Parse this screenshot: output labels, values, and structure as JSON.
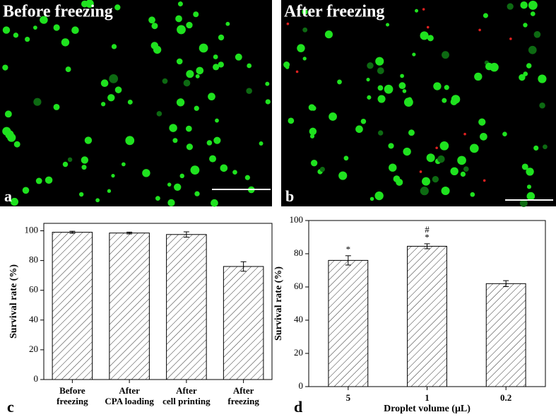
{
  "images": [
    {
      "title": "Before freezing",
      "label": "a"
    },
    {
      "title": "After freezing",
      "label": "b"
    }
  ],
  "chart_data": [
    {
      "type": "bar",
      "panel_label": "c",
      "ylabel": "Survival rate (%)",
      "categories": [
        "Before\nfreezing",
        "After\nCPA loading",
        "After\ncell printing",
        "After\nfreezing"
      ],
      "values": [
        99,
        98.5,
        97.5,
        76
      ],
      "errors": [
        0.7,
        0.6,
        1.8,
        3.2
      ],
      "ylim": [
        0,
        105
      ],
      "yticks": [
        0,
        20,
        40,
        60,
        80,
        100
      ]
    },
    {
      "type": "bar",
      "panel_label": "d",
      "ylabel": "Survival rate (%)",
      "xlabel": "Droplet volume (μL)",
      "categories": [
        "5",
        "1",
        "0.2"
      ],
      "values": [
        76,
        84.5,
        62
      ],
      "errors": [
        2.8,
        1.5,
        1.8
      ],
      "ylim": [
        0,
        100
      ],
      "yticks": [
        0,
        20,
        40,
        60,
        80,
        100
      ],
      "annotations": [
        {
          "x": "5",
          "text": "*"
        },
        {
          "x": "1",
          "text": "*"
        },
        {
          "x": "1",
          "text": "#"
        }
      ]
    }
  ]
}
